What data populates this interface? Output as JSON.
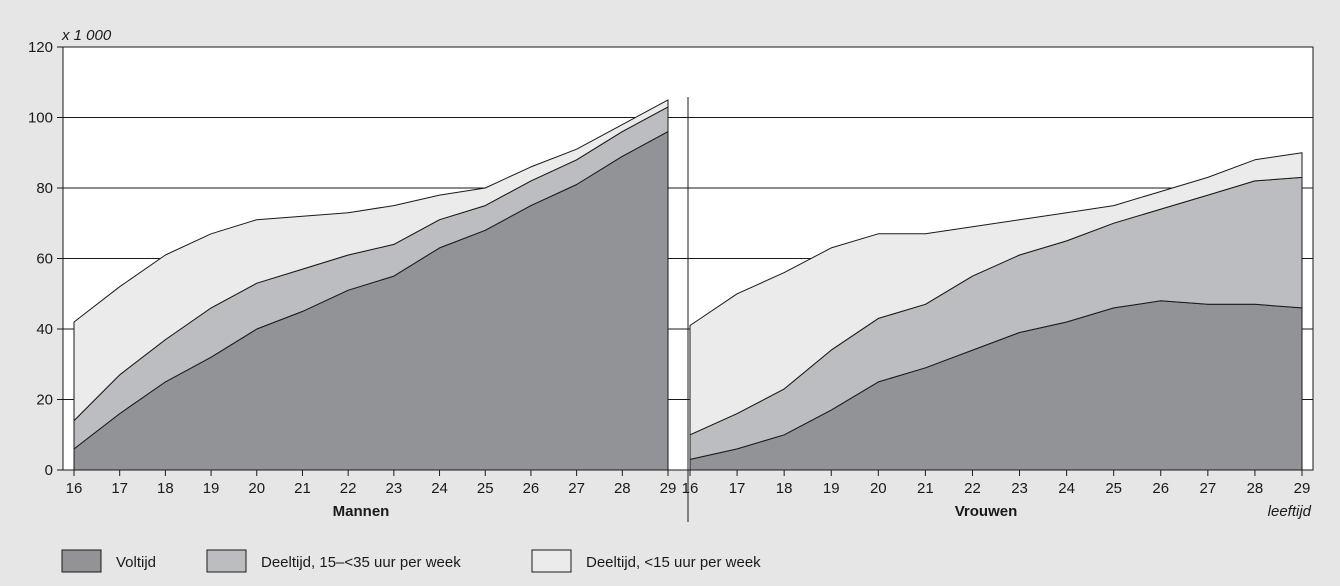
{
  "chart_data": {
    "type": "area",
    "stacked": true,
    "y_unit_label": "x 1 000",
    "x_unit_label": "leeftijd",
    "ylim": [
      0,
      120
    ],
    "yticks": [
      0,
      20,
      40,
      60,
      80,
      100,
      120
    ],
    "grid": "horizontal",
    "legend_position": "bottom-left",
    "x": [
      16,
      17,
      18,
      19,
      20,
      21,
      22,
      23,
      24,
      25,
      26,
      27,
      28,
      29
    ],
    "colors": {
      "Voltijd": "#929396",
      "Deeltijd, 15–<35 uur per week": "#bcbdc0",
      "Deeltijd, <15 uur per week": "#ebebec"
    },
    "panels": [
      {
        "label": "Mannen",
        "series": [
          {
            "name": "Voltijd",
            "values": [
              6,
              16,
              25,
              32,
              40,
              45,
              51,
              55,
              63,
              68,
              75,
              81,
              89,
              96
            ]
          },
          {
            "name": "Deeltijd, 15–<35 uur per week",
            "values": [
              8,
              11,
              12,
              14,
              13,
              12,
              10,
              9,
              8,
              7,
              7,
              7,
              7,
              7
            ]
          },
          {
            "name": "Deeltijd, <15 uur per week",
            "values": [
              28,
              25,
              24,
              21,
              18,
              15,
              12,
              11,
              7,
              5,
              4,
              3,
              2,
              2
            ]
          }
        ]
      },
      {
        "label": "Vrouwen",
        "series": [
          {
            "name": "Voltijd",
            "values": [
              3,
              6,
              10,
              17,
              25,
              29,
              34,
              39,
              42,
              46,
              48,
              47,
              47,
              46
            ]
          },
          {
            "name": "Deeltijd, 15–<35 uur per week",
            "values": [
              7,
              10,
              13,
              17,
              18,
              18,
              21,
              22,
              23,
              24,
              26,
              31,
              35,
              37
            ]
          },
          {
            "name": "Deeltijd, <15 uur per week",
            "values": [
              31,
              34,
              33,
              29,
              24,
              20,
              14,
              10,
              8,
              5,
              5,
              5,
              6,
              7
            ]
          }
        ]
      }
    ]
  }
}
